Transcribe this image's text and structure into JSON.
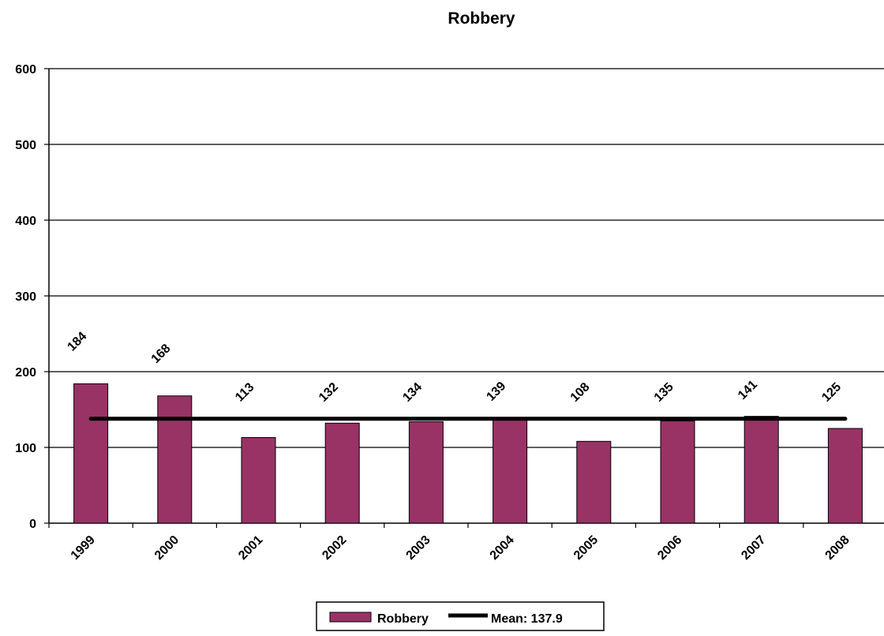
{
  "chart_data": {
    "type": "bar",
    "title": "Robbery",
    "xlabel": "",
    "ylabel": "",
    "categories": [
      "1999",
      "2000",
      "2001",
      "2002",
      "2003",
      "2004",
      "2005",
      "2006",
      "2007",
      "2008"
    ],
    "series": [
      {
        "name": "Robbery",
        "values": [
          184,
          168,
          113,
          132,
          134,
          139,
          108,
          135,
          141,
          125
        ],
        "color": "#993366"
      }
    ],
    "data_labels": [
      "184",
      "168",
      "113",
      "132",
      "134",
      "139",
      "108",
      "135",
      "141",
      "125"
    ],
    "mean_line": {
      "label": "Mean: 137.9",
      "value": 137.9,
      "color": "#000000"
    },
    "ylim": [
      0,
      600
    ],
    "yticks": [
      "0",
      "100",
      "200",
      "300",
      "400",
      "500",
      "600"
    ],
    "grid": true,
    "legend_position": "bottom"
  }
}
